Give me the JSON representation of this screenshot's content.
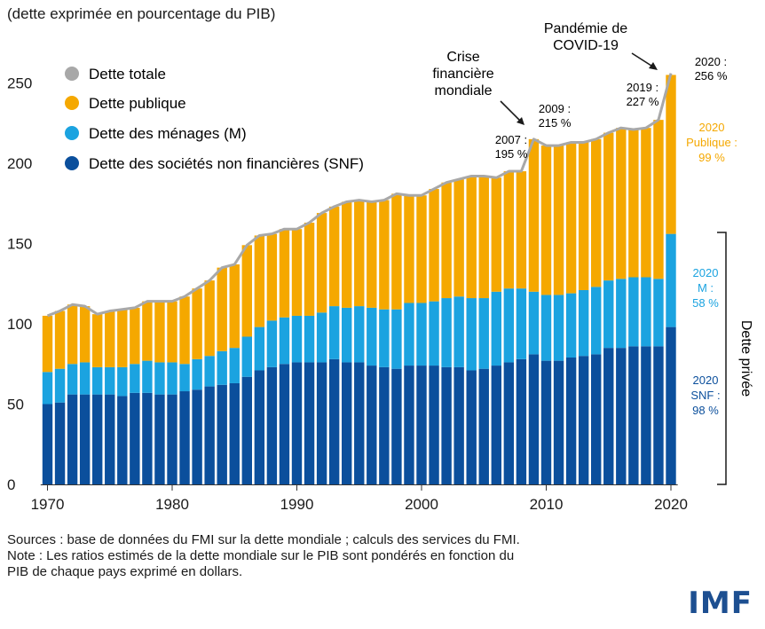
{
  "chart_data": {
    "type": "bar",
    "stacked": true,
    "subtitle": "(dette exprimée en pourcentage du PIB)",
    "ylim": [
      0,
      260
    ],
    "yticks": [
      0,
      50,
      100,
      150,
      200,
      250
    ],
    "xticks": [
      "1970",
      "1980",
      "1990",
      "2000",
      "2010",
      "2020"
    ],
    "categories": [
      "1970",
      "1971",
      "1972",
      "1973",
      "1974",
      "1975",
      "1976",
      "1977",
      "1978",
      "1979",
      "1980",
      "1981",
      "1982",
      "1983",
      "1984",
      "1985",
      "1986",
      "1987",
      "1988",
      "1989",
      "1990",
      "1991",
      "1992",
      "1993",
      "1994",
      "1995",
      "1996",
      "1997",
      "1998",
      "1999",
      "2000",
      "2001",
      "2002",
      "2003",
      "2004",
      "2005",
      "2006",
      "2007",
      "2008",
      "2009",
      "2010",
      "2011",
      "2012",
      "2013",
      "2014",
      "2015",
      "2016",
      "2017",
      "2018",
      "2019",
      "2020"
    ],
    "series": [
      {
        "name": "Dette des sociétés non financières (SNF)",
        "color": "#0b4f9c",
        "values": [
          50,
          51,
          56,
          56,
          56,
          56,
          55,
          57,
          57,
          56,
          56,
          58,
          59,
          61,
          62,
          63,
          67,
          71,
          73,
          75,
          76,
          76,
          76,
          78,
          76,
          76,
          74,
          73,
          72,
          74,
          74,
          74,
          73,
          73,
          71,
          72,
          74,
          76,
          78,
          81,
          77,
          77,
          79,
          80,
          81,
          85,
          85,
          86,
          86,
          86,
          98
        ]
      },
      {
        "name": "Dette des ménages (M)",
        "color": "#1ba3e0",
        "values": [
          20,
          21,
          19,
          20,
          17,
          17,
          18,
          18,
          20,
          20,
          20,
          17,
          19,
          19,
          21,
          22,
          25,
          27,
          29,
          29,
          29,
          29,
          31,
          33,
          34,
          35,
          36,
          36,
          37,
          39,
          39,
          40,
          43,
          44,
          45,
          44,
          46,
          46,
          44,
          39,
          41,
          41,
          40,
          41,
          42,
          42,
          43,
          43,
          43,
          42,
          58
        ]
      },
      {
        "name": "Dette publique",
        "color": "#f5a800",
        "values": [
          35,
          36,
          37,
          35,
          33,
          35,
          36,
          35,
          37,
          38,
          38,
          42,
          44,
          47,
          52,
          52,
          57,
          57,
          54,
          55,
          54,
          58,
          62,
          62,
          66,
          66,
          66,
          68,
          72,
          67,
          67,
          70,
          72,
          73,
          76,
          76,
          71,
          73,
          73,
          95,
          93,
          93,
          94,
          92,
          92,
          92,
          94,
          92,
          93,
          99,
          99
        ]
      },
      {
        "name": "Dette totale",
        "color": "#a8a8a8",
        "type": "line",
        "values": [
          105,
          108,
          112,
          111,
          106,
          108,
          109,
          110,
          114,
          114,
          114,
          117,
          122,
          127,
          135,
          137,
          149,
          155,
          156,
          159,
          159,
          163,
          169,
          173,
          176,
          177,
          176,
          177,
          181,
          180,
          180,
          184,
          188,
          190,
          192,
          192,
          191,
          195,
          195,
          215,
          211,
          211,
          213,
          213,
          215,
          219,
          222,
          221,
          222,
          227,
          256
        ]
      }
    ],
    "annotations": [
      {
        "id": "covid",
        "text": "Pandémie de COVID-19"
      },
      {
        "id": "crise",
        "text": "Crise financière mondiale"
      },
      {
        "id": "y2007",
        "text": "2007 : 195 %"
      },
      {
        "id": "y2009",
        "text": "2009 : 215 %"
      },
      {
        "id": "y2019",
        "text": "2019 : 227 %"
      },
      {
        "id": "y2020",
        "text": "2020 : 256 %"
      },
      {
        "id": "pub2020",
        "text": "2020 Publique : 99 %"
      },
      {
        "id": "m2020",
        "text": "2020 M : 58 %"
      },
      {
        "id": "snf2020",
        "text": "2020 SNF : 98 %"
      },
      {
        "id": "private",
        "text": "Dette privée"
      }
    ]
  },
  "legend_labels": {
    "total": "Dette totale",
    "public": "Dette publique",
    "menages": "Dette des ménages (M)",
    "snf": "Dette des sociétés non financières (SNF)"
  },
  "labels": {
    "subtitle": "(dette exprimée en pourcentage du PIB)",
    "covid_l1": "Pandémie de",
    "covid_l2": "COVID-19",
    "crise_l1": "Crise",
    "crise_l2": "financière",
    "crise_l3": "mondiale",
    "y2007_l1": "2007 :",
    "y2007_l2": "195 %",
    "y2009_l1": "2009 :",
    "y2009_l2": "215 %",
    "y2019_l1": "2019 :",
    "y2019_l2": "227 %",
    "y2020_l1": "2020 :",
    "y2020_l2": "256 %",
    "pub_l1": "2020",
    "pub_l2": "Publique :",
    "pub_l3": "99 %",
    "m_l1": "2020",
    "m_l2": "M :",
    "m_l3": "58 %",
    "snf_l1": "2020",
    "snf_l2": "SNF :",
    "snf_l3": "98 %",
    "private": "Dette privée"
  },
  "footer": {
    "line1": "Sources : base de données du FMI sur la dette mondiale ; calculs des services du FMI.",
    "line2": "Note : Les ratios estimés de la dette mondiale sur le PIB sont pondérés en fonction du",
    "line3": "PIB de chaque pays exprimé en dollars."
  },
  "logo": "IMF",
  "colors": {
    "snf": "#0b4f9c",
    "menages": "#1ba3e0",
    "publique": "#f5a800",
    "totale": "#a8a8a8"
  }
}
